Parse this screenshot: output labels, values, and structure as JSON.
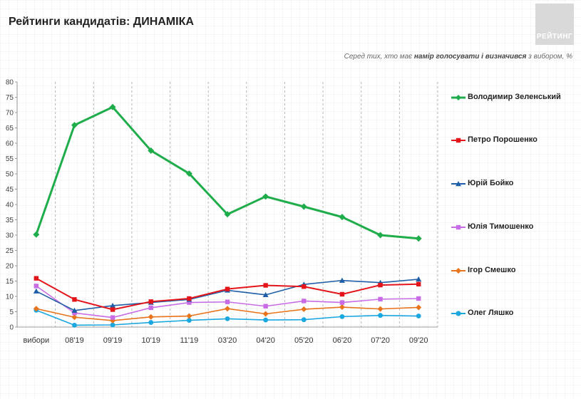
{
  "header": {
    "title": "Рейтинги кандидатів: ДИНАМІКА",
    "logo_text": "РЕЙТИНГ",
    "subtitle_prefix": "Серед тих, хто має ",
    "subtitle_bold": "намір голосувати і визначився",
    "subtitle_suffix": " з вибором, %"
  },
  "chart_data": {
    "type": "line",
    "categories": [
      "вибори",
      "08'19",
      "09'19",
      "10'19",
      "11'19",
      "03'20",
      "04'20",
      "05'20",
      "06'20",
      "07'20",
      "09'20"
    ],
    "ylim": [
      0,
      80
    ],
    "yticks": [
      0,
      5,
      10,
      15,
      20,
      25,
      30,
      35,
      40,
      45,
      50,
      55,
      60,
      65,
      70,
      75,
      80
    ],
    "grid": "vertical dashed",
    "legend_position": "right",
    "series": [
      {
        "name": "Володимир Зеленський",
        "color": "#1fad4b",
        "marker": "diamond",
        "width": 3,
        "values": [
          30.2,
          65.9,
          71.8,
          57.6,
          50.1,
          36.8,
          42.6,
          39.3,
          35.9,
          30.0,
          28.9
        ]
      },
      {
        "name": "Петро Порошенко",
        "color": "#e3151a",
        "marker": "square",
        "width": 2,
        "values": [
          15.9,
          9.0,
          5.7,
          8.3,
          9.3,
          12.4,
          13.6,
          13.2,
          10.7,
          13.7,
          14.0
        ]
      },
      {
        "name": "Юрій Бойко",
        "color": "#1f5fa8",
        "marker": "triangle",
        "width": 1.6,
        "values": [
          11.7,
          5.4,
          7.0,
          8.0,
          9.0,
          12.0,
          10.5,
          13.9,
          15.2,
          14.5,
          15.6
        ]
      },
      {
        "name": "Юлія Тимошенко",
        "color": "#c86ce6",
        "marker": "square",
        "width": 1.6,
        "values": [
          13.4,
          4.6,
          3.1,
          6.3,
          8.0,
          8.2,
          6.8,
          8.5,
          8.0,
          9.1,
          9.3
        ]
      },
      {
        "name": "Ігор Смешко",
        "color": "#e8741c",
        "marker": "diamond",
        "width": 1.6,
        "values": [
          6.0,
          3.2,
          2.1,
          3.3,
          3.6,
          6.0,
          4.3,
          5.8,
          6.5,
          5.9,
          6.4
        ]
      },
      {
        "name": "Олег Ляшко",
        "color": "#1aa7e0",
        "marker": "circle",
        "width": 1.6,
        "values": [
          5.5,
          0.6,
          0.7,
          1.5,
          2.2,
          2.7,
          2.3,
          2.4,
          3.4,
          3.8,
          3.6
        ]
      }
    ]
  }
}
